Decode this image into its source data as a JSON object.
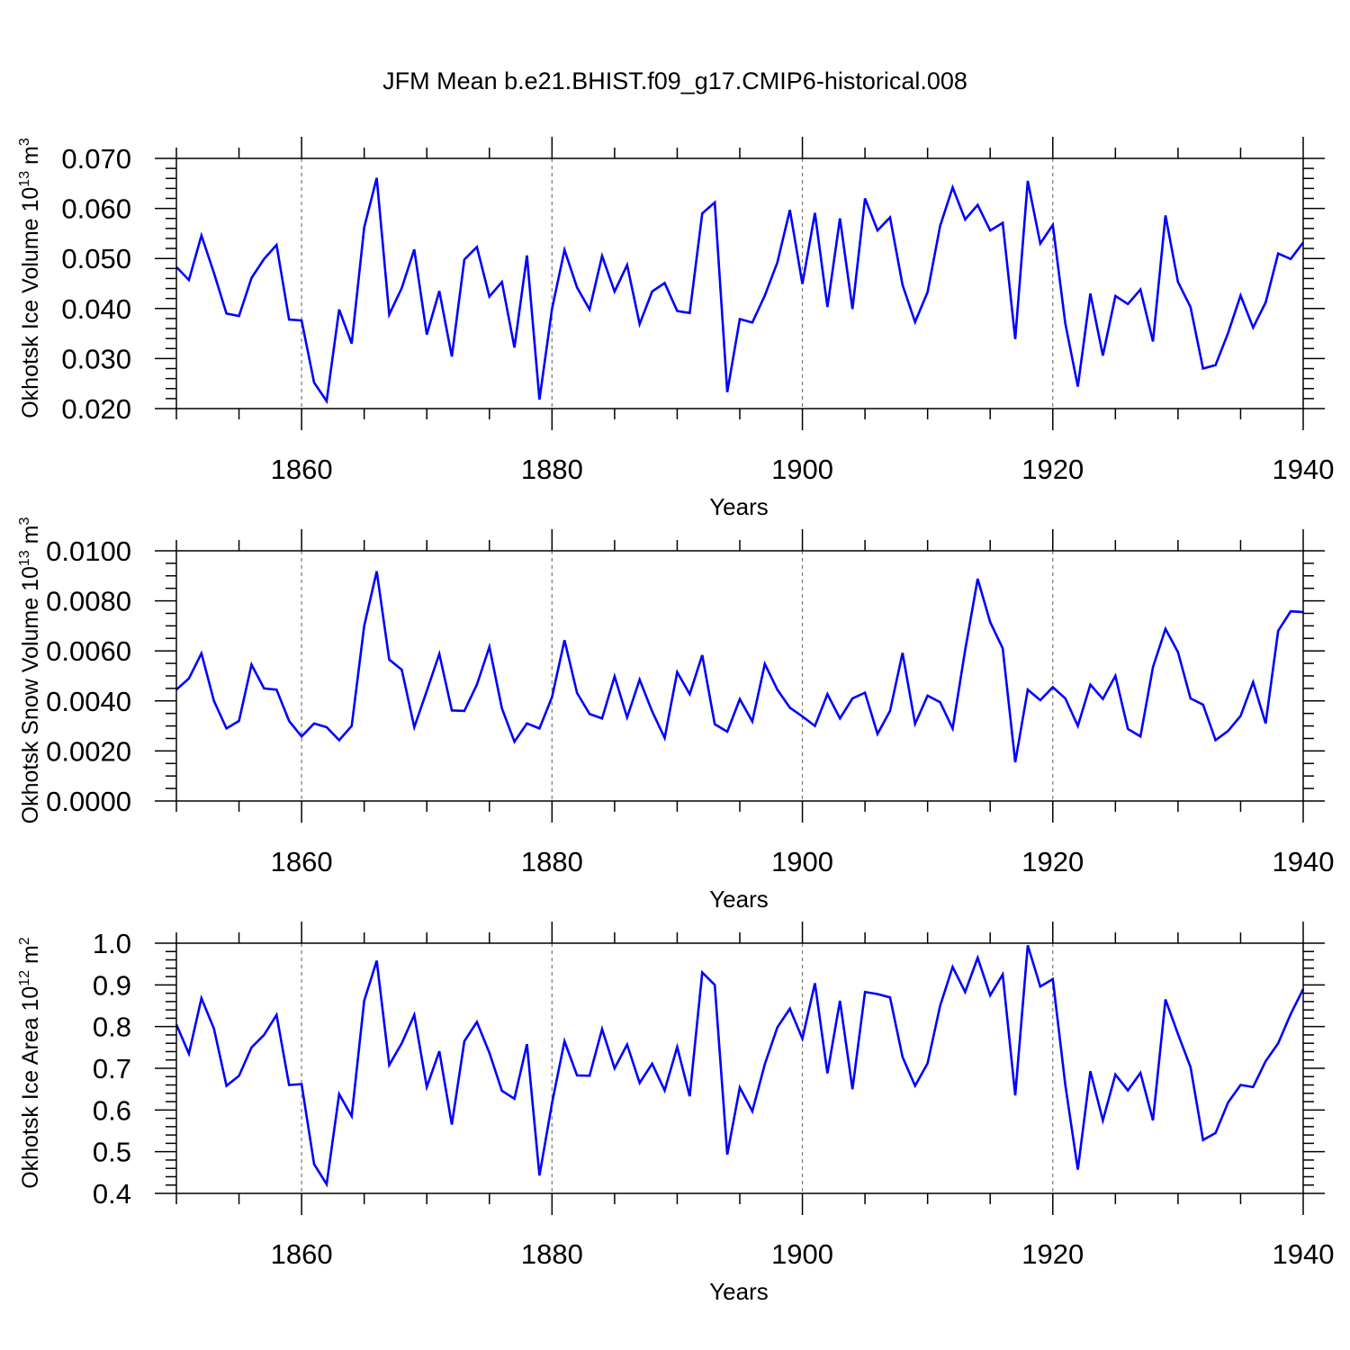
{
  "title": "JFM Mean b.e21.BHIST.f09_g17.CMIP6-historical.008",
  "chart_data": [
    {
      "type": "line",
      "ylabel": "Okhotsk Ice Volume 10",
      "ylabel_exp": "13",
      "ylabel_unit": " m",
      "ylabel_unit_exp": "3",
      "xlabel": "Years",
      "xlim": [
        1850,
        1940
      ],
      "ylim": [
        0.02,
        0.07
      ],
      "xticks": [
        1860,
        1880,
        1900,
        1920,
        1940
      ],
      "xtick_labels": [
        "1860",
        "1880",
        "1900",
        "1920",
        "1940"
      ],
      "yticks": [
        0.02,
        0.03,
        0.04,
        0.05,
        0.06,
        0.07
      ],
      "ytick_labels": [
        "0.020",
        "0.030",
        "0.040",
        "0.050",
        "0.060",
        "0.070"
      ],
      "ymajor_step": 0.01,
      "ymin_per_major": 5,
      "line_color": "#0000ff",
      "x": [
        1850,
        1851,
        1852,
        1853,
        1854,
        1855,
        1856,
        1857,
        1858,
        1859,
        1860,
        1861,
        1862,
        1863,
        1864,
        1865,
        1866,
        1867,
        1868,
        1869,
        1870,
        1871,
        1872,
        1873,
        1874,
        1875,
        1876,
        1877,
        1878,
        1879,
        1880,
        1881,
        1882,
        1883,
        1884,
        1885,
        1886,
        1887,
        1888,
        1889,
        1890,
        1891,
        1892,
        1893,
        1894,
        1895,
        1896,
        1897,
        1898,
        1899,
        1900,
        1901,
        1902,
        1903,
        1904,
        1905,
        1906,
        1907,
        1908,
        1909,
        1910,
        1911,
        1912,
        1913,
        1914,
        1915,
        1916,
        1917,
        1918,
        1919,
        1920,
        1921,
        1922,
        1923,
        1924,
        1925,
        1926,
        1927,
        1928,
        1929,
        1930,
        1931,
        1932,
        1933,
        1934,
        1935,
        1936,
        1937,
        1938,
        1939,
        1940
      ],
      "values": [
        0.0483,
        0.0457,
        0.0546,
        0.0471,
        0.039,
        0.0385,
        0.0461,
        0.0499,
        0.0527,
        0.0378,
        0.0376,
        0.0252,
        0.0215,
        0.0398,
        0.033,
        0.0562,
        0.0661,
        0.0388,
        0.0441,
        0.0518,
        0.0348,
        0.0435,
        0.0304,
        0.0498,
        0.0523,
        0.0424,
        0.0453,
        0.0322,
        0.0506,
        0.0218,
        0.0399,
        0.0517,
        0.0442,
        0.0398,
        0.0505,
        0.0434,
        0.0487,
        0.0369,
        0.0434,
        0.0451,
        0.0395,
        0.0391,
        0.059,
        0.0612,
        0.0233,
        0.0379,
        0.0372,
        0.0426,
        0.0492,
        0.0597,
        0.0449,
        0.0591,
        0.0403,
        0.058,
        0.0399,
        0.062,
        0.0556,
        0.0582,
        0.0447,
        0.0373,
        0.0433,
        0.0565,
        0.0642,
        0.0578,
        0.0607,
        0.0556,
        0.0571,
        0.0339,
        0.0655,
        0.053,
        0.0567,
        0.037,
        0.0244,
        0.043,
        0.0306,
        0.0425,
        0.0409,
        0.0438,
        0.0334,
        0.0586,
        0.0453,
        0.0403,
        0.028,
        0.0287,
        0.0351,
        0.0426,
        0.0362,
        0.0412,
        0.051,
        0.0499,
        0.0532
      ]
    },
    {
      "type": "line",
      "ylabel": "Okhotsk Snow Volume 10",
      "ylabel_exp": "13",
      "ylabel_unit": " m",
      "ylabel_unit_exp": "3",
      "xlabel": "Years",
      "xlim": [
        1850,
        1940
      ],
      "ylim": [
        0.0,
        0.01
      ],
      "xticks": [
        1860,
        1880,
        1900,
        1920,
        1940
      ],
      "xtick_labels": [
        "1860",
        "1880",
        "1900",
        "1920",
        "1940"
      ],
      "yticks": [
        0.0,
        0.002,
        0.004,
        0.006,
        0.008,
        0.01
      ],
      "ytick_labels": [
        "0.0000",
        "0.0020",
        "0.0040",
        "0.0060",
        "0.0080",
        "0.0100"
      ],
      "ymajor_step": 0.002,
      "ymin_per_major": 4,
      "line_color": "#0000ff",
      "x": [
        1850,
        1851,
        1852,
        1853,
        1854,
        1855,
        1856,
        1857,
        1858,
        1859,
        1860,
        1861,
        1862,
        1863,
        1864,
        1865,
        1866,
        1867,
        1868,
        1869,
        1870,
        1871,
        1872,
        1873,
        1874,
        1875,
        1876,
        1877,
        1878,
        1879,
        1880,
        1881,
        1882,
        1883,
        1884,
        1885,
        1886,
        1887,
        1888,
        1889,
        1890,
        1891,
        1892,
        1893,
        1894,
        1895,
        1896,
        1897,
        1898,
        1899,
        1900,
        1901,
        1902,
        1903,
        1904,
        1905,
        1906,
        1907,
        1908,
        1909,
        1910,
        1911,
        1912,
        1913,
        1914,
        1915,
        1916,
        1917,
        1918,
        1919,
        1920,
        1921,
        1922,
        1923,
        1924,
        1925,
        1926,
        1927,
        1928,
        1929,
        1930,
        1931,
        1932,
        1933,
        1934,
        1935,
        1936,
        1937,
        1938,
        1939,
        1940
      ],
      "values": [
        0.00445,
        0.0049,
        0.0059,
        0.004,
        0.0029,
        0.0032,
        0.00545,
        0.0045,
        0.00445,
        0.0032,
        0.00258,
        0.0031,
        0.00295,
        0.00243,
        0.003,
        0.007,
        0.00918,
        0.00565,
        0.00525,
        0.00295,
        0.0044,
        0.00588,
        0.00362,
        0.0036,
        0.00465,
        0.00616,
        0.0037,
        0.00237,
        0.0031,
        0.0029,
        0.00415,
        0.00643,
        0.00432,
        0.00348,
        0.0033,
        0.00498,
        0.00334,
        0.00485,
        0.00358,
        0.00252,
        0.00515,
        0.00427,
        0.00583,
        0.00307,
        0.00277,
        0.00407,
        0.00318,
        0.00548,
        0.00445,
        0.00373,
        0.00338,
        0.003,
        0.00427,
        0.0033,
        0.0041,
        0.00433,
        0.00268,
        0.0036,
        0.00592,
        0.00308,
        0.00421,
        0.00395,
        0.0029,
        0.00603,
        0.00888,
        0.00715,
        0.0061,
        0.00155,
        0.00445,
        0.00403,
        0.00455,
        0.0041,
        0.003,
        0.00465,
        0.00408,
        0.005,
        0.00288,
        0.00258,
        0.00535,
        0.00688,
        0.00595,
        0.0041,
        0.00385,
        0.00243,
        0.0028,
        0.0034,
        0.00475,
        0.0031,
        0.0068,
        0.00758,
        0.00755
      ]
    },
    {
      "type": "line",
      "ylabel": "Okhotsk Ice Area 10",
      "ylabel_exp": "12",
      "ylabel_unit": " m",
      "ylabel_unit_exp": "2",
      "xlabel": "Years",
      "xlim": [
        1850,
        1940
      ],
      "ylim": [
        0.4,
        1.0
      ],
      "xticks": [
        1860,
        1880,
        1900,
        1920,
        1940
      ],
      "xtick_labels": [
        "1860",
        "1880",
        "1900",
        "1920",
        "1940"
      ],
      "yticks": [
        0.4,
        0.5,
        0.6,
        0.7,
        0.8,
        0.9,
        1.0
      ],
      "ytick_labels": [
        "0.4",
        "0.5",
        "0.6",
        "0.7",
        "0.8",
        "0.9",
        "1.0"
      ],
      "ymajor_step": 0.1,
      "ymin_per_major": 5,
      "line_color": "#0000ff",
      "x": [
        1850,
        1851,
        1852,
        1853,
        1854,
        1855,
        1856,
        1857,
        1858,
        1859,
        1860,
        1861,
        1862,
        1863,
        1864,
        1865,
        1866,
        1867,
        1868,
        1869,
        1870,
        1871,
        1872,
        1873,
        1874,
        1875,
        1876,
        1877,
        1878,
        1879,
        1880,
        1881,
        1882,
        1883,
        1884,
        1885,
        1886,
        1887,
        1888,
        1889,
        1890,
        1891,
        1892,
        1893,
        1894,
        1895,
        1896,
        1897,
        1898,
        1899,
        1900,
        1901,
        1902,
        1903,
        1904,
        1905,
        1906,
        1907,
        1908,
        1909,
        1910,
        1911,
        1912,
        1913,
        1914,
        1915,
        1916,
        1917,
        1918,
        1919,
        1920,
        1921,
        1922,
        1923,
        1924,
        1925,
        1926,
        1927,
        1928,
        1929,
        1930,
        1931,
        1932,
        1933,
        1934,
        1935,
        1936,
        1937,
        1938,
        1939,
        1940
      ],
      "values": [
        0.805,
        0.735,
        0.868,
        0.795,
        0.658,
        0.682,
        0.75,
        0.78,
        0.828,
        0.66,
        0.662,
        0.47,
        0.422,
        0.638,
        0.585,
        0.862,
        0.958,
        0.708,
        0.76,
        0.828,
        0.655,
        0.741,
        0.565,
        0.765,
        0.811,
        0.737,
        0.646,
        0.627,
        0.758,
        0.443,
        0.616,
        0.765,
        0.683,
        0.682,
        0.794,
        0.7,
        0.757,
        0.665,
        0.711,
        0.647,
        0.751,
        0.633,
        0.93,
        0.9,
        0.493,
        0.654,
        0.597,
        0.71,
        0.798,
        0.843,
        0.771,
        0.904,
        0.688,
        0.862,
        0.65,
        0.883,
        0.878,
        0.87,
        0.727,
        0.658,
        0.712,
        0.85,
        0.943,
        0.883,
        0.965,
        0.875,
        0.925,
        0.635,
        0.995,
        0.896,
        0.914,
        0.66,
        0.457,
        0.693,
        0.575,
        0.685,
        0.647,
        0.689,
        0.575,
        0.865,
        0.782,
        0.703,
        0.528,
        0.545,
        0.618,
        0.66,
        0.655,
        0.717,
        0.76,
        0.83,
        0.89
      ]
    }
  ]
}
